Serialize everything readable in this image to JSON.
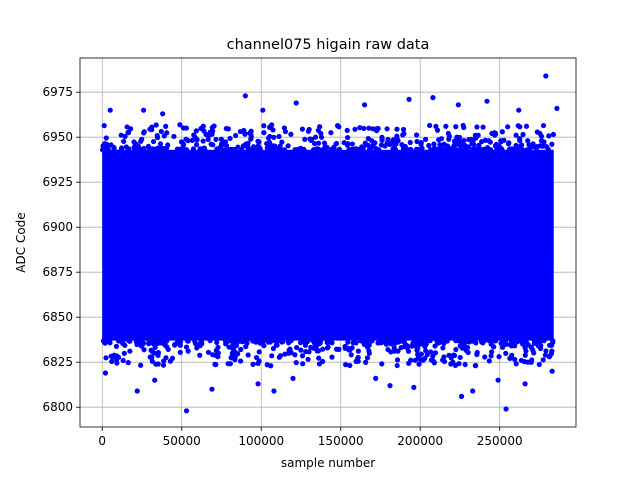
{
  "chart_data": {
    "type": "scatter",
    "title": "channel075 higain raw data",
    "xlabel": "sample number",
    "ylabel": "ADC Code",
    "xlim": [
      -14000,
      298000
    ],
    "ylim": [
      6789,
      6994
    ],
    "xticks": [
      0,
      50000,
      100000,
      150000,
      200000,
      250000
    ],
    "xtick_labels": [
      "0",
      "50000",
      "100000",
      "150000",
      "200000",
      "250000"
    ],
    "yticks": [
      6800,
      6825,
      6850,
      6875,
      6900,
      6925,
      6950,
      6975
    ],
    "ytick_labels": [
      "6800",
      "6825",
      "6850",
      "6875",
      "6900",
      "6925",
      "6950",
      "6975"
    ],
    "grid": true,
    "marker_color": "#0000ff",
    "series": [
      {
        "sample_count_approx": 284000,
        "x_range": [
          0,
          284000
        ],
        "dense_band": {
          "y_low": 6837,
          "y_high": 6943
        },
        "outliers": [
          {
            "x": 5000,
            "y": 6965
          },
          {
            "x": 26000,
            "y": 6965
          },
          {
            "x": 38000,
            "y": 6963
          },
          {
            "x": 90000,
            "y": 6973
          },
          {
            "x": 101000,
            "y": 6965
          },
          {
            "x": 122000,
            "y": 6969
          },
          {
            "x": 165000,
            "y": 6968
          },
          {
            "x": 193000,
            "y": 6971
          },
          {
            "x": 208000,
            "y": 6972
          },
          {
            "x": 224000,
            "y": 6968
          },
          {
            "x": 242000,
            "y": 6970
          },
          {
            "x": 262000,
            "y": 6965
          },
          {
            "x": 279000,
            "y": 6984
          },
          {
            "x": 286000,
            "y": 6966
          },
          {
            "x": 53000,
            "y": 6798
          },
          {
            "x": 254000,
            "y": 6799
          },
          {
            "x": 22000,
            "y": 6809
          },
          {
            "x": 69000,
            "y": 6810
          },
          {
            "x": 98000,
            "y": 6813
          },
          {
            "x": 108000,
            "y": 6809
          },
          {
            "x": 181000,
            "y": 6812
          },
          {
            "x": 196000,
            "y": 6811
          },
          {
            "x": 226000,
            "y": 6806
          },
          {
            "x": 233000,
            "y": 6809
          },
          {
            "x": 266000,
            "y": 6813
          },
          {
            "x": 2000,
            "y": 6819
          },
          {
            "x": 33000,
            "y": 6815
          },
          {
            "x": 120000,
            "y": 6816
          },
          {
            "x": 172000,
            "y": 6816
          },
          {
            "x": 249000,
            "y": 6815
          },
          {
            "x": 283000,
            "y": 6820
          }
        ]
      }
    ]
  }
}
